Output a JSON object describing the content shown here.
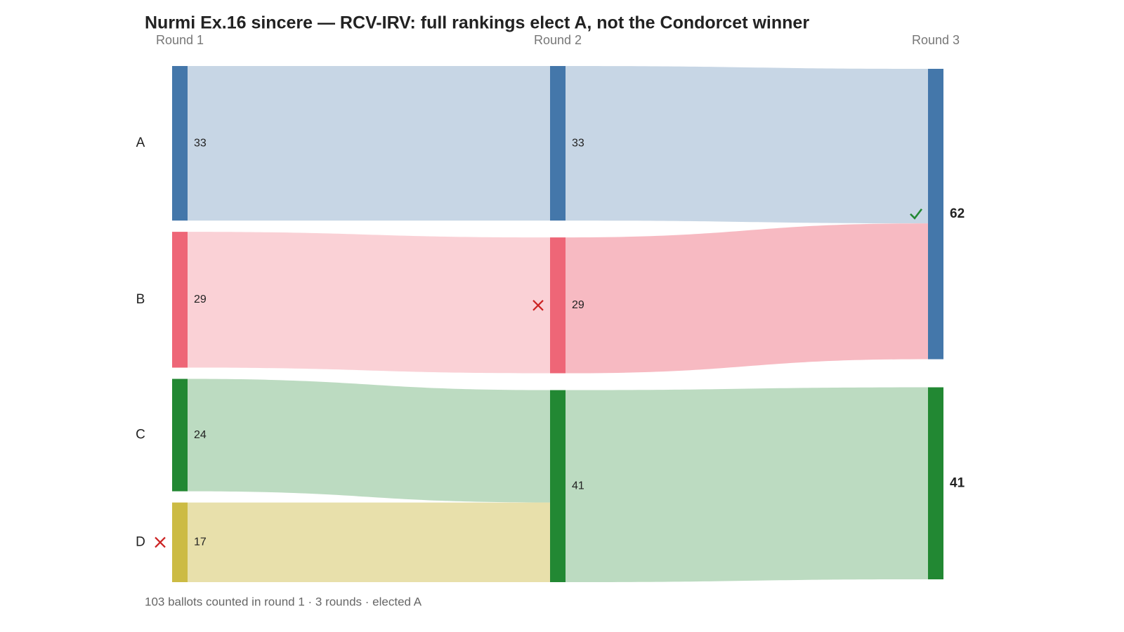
{
  "chart_data": {
    "type": "sankey",
    "title": "Nurmi Ex.16 sincere — RCV-IRV: full rankings elect A, not the Condorcet winner",
    "footer": "103 ballots counted in round 1 · 3 rounds · elected A",
    "candidates": [
      {
        "name": "A",
        "color": "#4477aa"
      },
      {
        "name": "B",
        "color": "#ee6677"
      },
      {
        "name": "C",
        "color": "#228833"
      },
      {
        "name": "D",
        "color": "#ccbb44"
      }
    ],
    "rounds": [
      {
        "label": "Round 1",
        "counts": [
          33,
          29,
          24,
          17
        ],
        "eliminated": 3,
        "flows": [
          {
            "from": 0,
            "to": 0,
            "value": 33
          },
          {
            "from": 1,
            "to": 1,
            "value": 29
          },
          {
            "from": 2,
            "to": 2,
            "value": 24
          },
          {
            "from": 3,
            "to": 2,
            "value": 17
          }
        ]
      },
      {
        "label": "Round 2",
        "counts": [
          33,
          29,
          41,
          null
        ],
        "eliminated": 1,
        "flows": [
          {
            "from": 0,
            "to": 0,
            "value": 33
          },
          {
            "from": 1,
            "to": 0,
            "value": 29
          },
          {
            "from": 2,
            "to": 2,
            "value": 41
          }
        ]
      },
      {
        "label": "Round 3",
        "counts": [
          62,
          null,
          41,
          null
        ],
        "elected": 0
      }
    ]
  }
}
